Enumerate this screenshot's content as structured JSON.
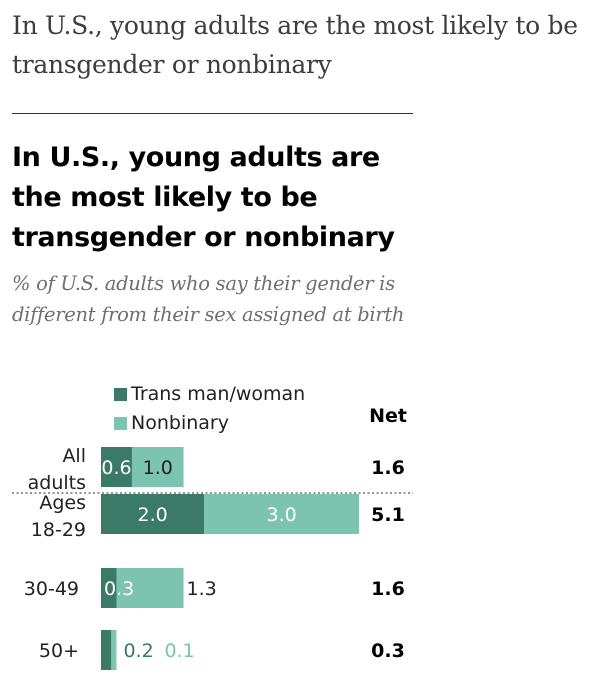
{
  "page": {
    "heading": "In U.S., young adults are the most likely to be transgender or nonbinary"
  },
  "chart_data": {
    "type": "bar",
    "stacked": true,
    "orientation": "horizontal",
    "title": "In U.S., young adults are the most likely to be transgender or nonbinary",
    "subtitle": "% of U.S. adults who say their gender is different from their sex assigned at birth",
    "net_header": "Net",
    "categories": [
      [
        "All",
        "adults"
      ],
      [
        "Ages",
        "18-29"
      ],
      [
        "30-49"
      ],
      [
        "50+"
      ]
    ],
    "series": [
      {
        "name": "Trans man/woman",
        "color": "#3a7a66",
        "values": [
          0.6,
          2.0,
          0.3,
          0.2
        ],
        "labels": [
          "0.6",
          "2.0",
          "0.3",
          "0.2"
        ]
      },
      {
        "name": "Nonbinary",
        "color": "#7cc4b0",
        "values": [
          1.0,
          3.0,
          1.3,
          0.1
        ],
        "labels": [
          "1.0",
          "3.0",
          "1.3",
          "0.1"
        ]
      }
    ],
    "net": [
      "1.6",
      "5.1",
      "1.6",
      "0.3"
    ],
    "xlim": [
      0,
      5.1
    ],
    "grid": false,
    "legend_position": "top"
  }
}
